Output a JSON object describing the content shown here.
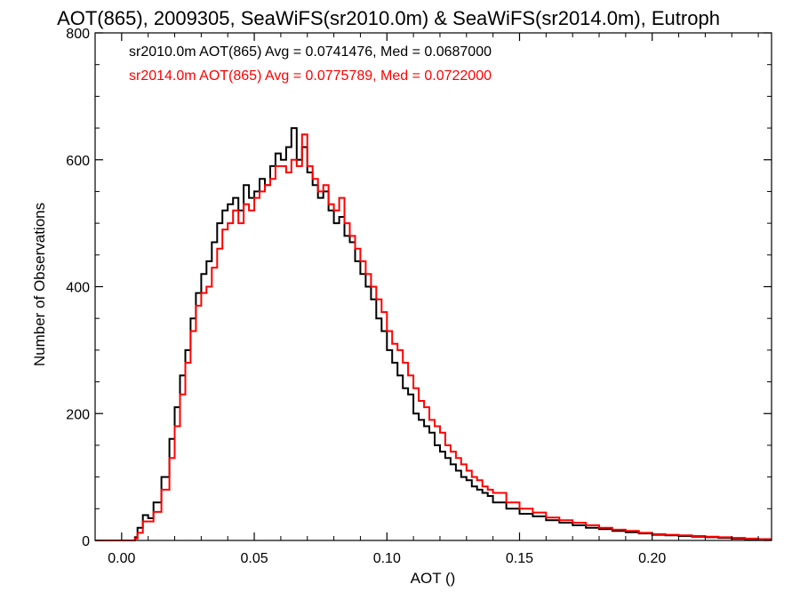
{
  "chart_data": {
    "type": "line",
    "step": true,
    "title": "AOT(865), 2009305, SeaWiFS(sr2010.0m) & SeaWiFS(sr2014.0m), Eutroph",
    "xlabel": "AOT ()",
    "ylabel": "Number of Observations",
    "xlim": [
      -0.01,
      0.245
    ],
    "ylim": [
      0,
      800
    ],
    "xticks": [
      0.0,
      0.05,
      0.1,
      0.15,
      0.2
    ],
    "xtick_labels": [
      "0.00",
      "0.05",
      "0.10",
      "0.15",
      "0.20"
    ],
    "yticks": [
      0,
      200,
      400,
      600,
      800
    ],
    "ytick_labels": [
      "0",
      "200",
      "400",
      "600",
      "800"
    ],
    "grid": false,
    "annotations": [
      {
        "text": "sr2010.0m AOT(865) Avg = 0.0741476, Med = 0.0687000",
        "color": "#000000"
      },
      {
        "text": "sr2014.0m AOT(865) Avg = 0.0775789, Med = 0.0722000",
        "color": "#ff0000"
      }
    ],
    "series": [
      {
        "color": "#000000",
        "x": [
          -0.01,
          0.0,
          0.005,
          0.006,
          0.008,
          0.01,
          0.012,
          0.015,
          0.018,
          0.02,
          0.022,
          0.024,
          0.026,
          0.028,
          0.03,
          0.032,
          0.034,
          0.036,
          0.038,
          0.04,
          0.042,
          0.044,
          0.046,
          0.048,
          0.05,
          0.052,
          0.054,
          0.056,
          0.058,
          0.06,
          0.062,
          0.064,
          0.066,
          0.068,
          0.07,
          0.072,
          0.074,
          0.076,
          0.078,
          0.08,
          0.082,
          0.084,
          0.086,
          0.088,
          0.09,
          0.092,
          0.094,
          0.096,
          0.098,
          0.1,
          0.102,
          0.104,
          0.106,
          0.108,
          0.11,
          0.112,
          0.114,
          0.116,
          0.118,
          0.12,
          0.122,
          0.124,
          0.126,
          0.128,
          0.13,
          0.132,
          0.134,
          0.136,
          0.138,
          0.14,
          0.145,
          0.15,
          0.155,
          0.16,
          0.165,
          0.17,
          0.175,
          0.18,
          0.185,
          0.19,
          0.195,
          0.2,
          0.205,
          0.21,
          0.215,
          0.22,
          0.225,
          0.23,
          0.235,
          0.24,
          0.245
        ],
        "y": [
          0,
          0,
          5,
          20,
          40,
          35,
          60,
          100,
          160,
          210,
          260,
          300,
          350,
          390,
          420,
          440,
          470,
          500,
          520,
          530,
          540,
          520,
          560,
          540,
          550,
          570,
          560,
          590,
          610,
          600,
          620,
          650,
          600,
          620,
          580,
          560,
          540,
          550,
          520,
          500,
          510,
          480,
          470,
          440,
          420,
          400,
          380,
          350,
          330,
          300,
          280,
          260,
          240,
          230,
          200,
          190,
          180,
          170,
          150,
          140,
          130,
          120,
          110,
          100,
          95,
          85,
          80,
          75,
          70,
          60,
          50,
          42,
          38,
          32,
          28,
          24,
          20,
          18,
          15,
          13,
          11,
          9,
          8,
          7,
          6,
          5,
          4,
          3,
          2,
          2,
          2
        ]
      },
      {
        "color": "#ff0000",
        "x": [
          -0.01,
          0.0,
          0.005,
          0.006,
          0.008,
          0.01,
          0.012,
          0.015,
          0.018,
          0.02,
          0.022,
          0.024,
          0.026,
          0.028,
          0.03,
          0.032,
          0.034,
          0.036,
          0.038,
          0.04,
          0.042,
          0.044,
          0.046,
          0.048,
          0.05,
          0.052,
          0.054,
          0.056,
          0.058,
          0.06,
          0.062,
          0.064,
          0.066,
          0.068,
          0.07,
          0.072,
          0.074,
          0.076,
          0.078,
          0.08,
          0.082,
          0.084,
          0.086,
          0.088,
          0.09,
          0.092,
          0.094,
          0.096,
          0.098,
          0.1,
          0.102,
          0.104,
          0.106,
          0.108,
          0.11,
          0.112,
          0.114,
          0.116,
          0.118,
          0.12,
          0.122,
          0.124,
          0.126,
          0.128,
          0.13,
          0.132,
          0.134,
          0.136,
          0.138,
          0.14,
          0.145,
          0.15,
          0.155,
          0.16,
          0.165,
          0.17,
          0.175,
          0.18,
          0.185,
          0.19,
          0.195,
          0.2,
          0.205,
          0.21,
          0.215,
          0.22,
          0.225,
          0.23,
          0.235,
          0.24,
          0.245
        ],
        "y": [
          0,
          0,
          3,
          12,
          30,
          30,
          45,
          80,
          130,
          180,
          230,
          280,
          330,
          370,
          390,
          400,
          430,
          460,
          490,
          500,
          520,
          500,
          530,
          520,
          540,
          550,
          560,
          570,
          590,
          590,
          580,
          600,
          590,
          640,
          590,
          570,
          550,
          560,
          530,
          520,
          540,
          500,
          480,
          460,
          440,
          420,
          400,
          380,
          360,
          330,
          310,
          300,
          280,
          260,
          240,
          220,
          210,
          190,
          180,
          170,
          150,
          140,
          130,
          120,
          110,
          100,
          95,
          85,
          80,
          75,
          60,
          50,
          44,
          36,
          32,
          28,
          24,
          20,
          17,
          15,
          12,
          10,
          9,
          8,
          7,
          6,
          5,
          4,
          3,
          2,
          2
        ]
      }
    ]
  }
}
